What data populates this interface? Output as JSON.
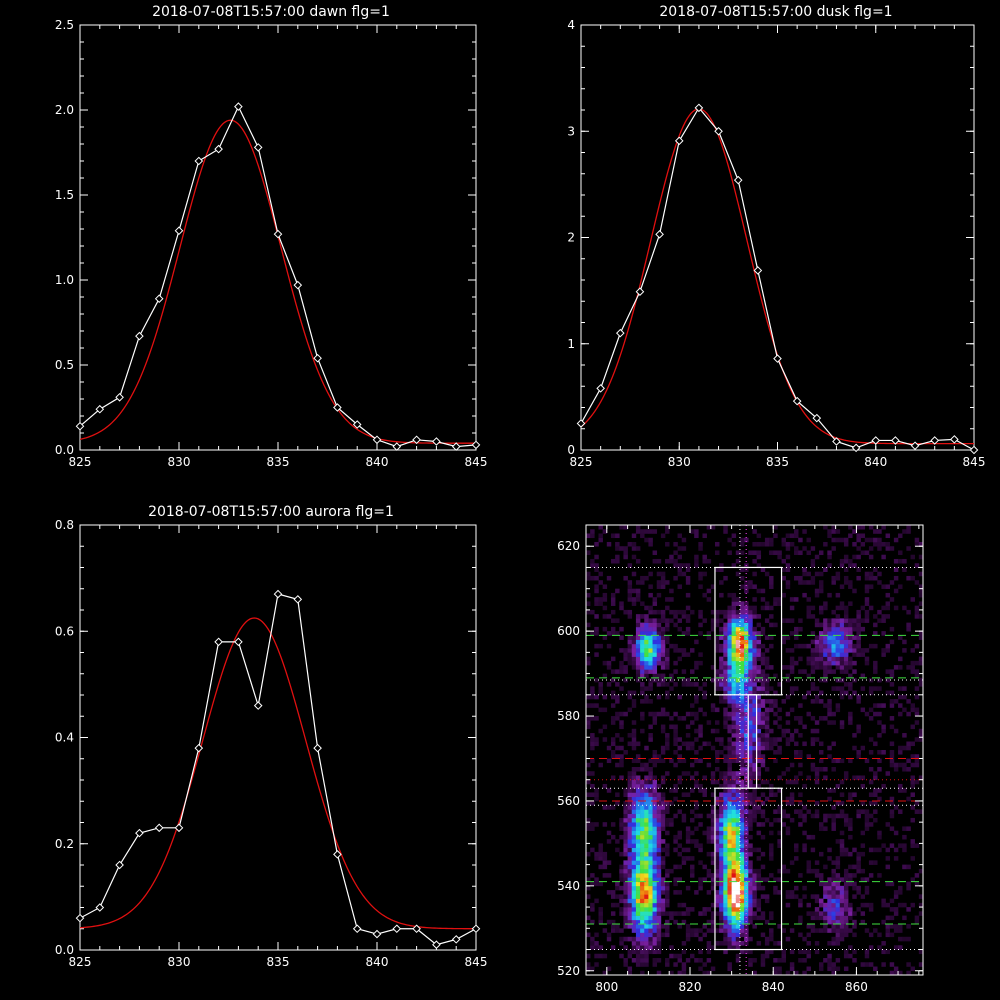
{
  "chart_data": [
    {
      "type": "line",
      "title": "2018-07-08T15:57:00 dawn flg=1",
      "xlim": [
        825,
        845
      ],
      "ylim": [
        0,
        2.5
      ],
      "xticks": [
        "825",
        "830",
        "835",
        "840",
        "845"
      ],
      "yticks": [
        "0.0",
        "0.5",
        "1.0",
        "1.5",
        "2.0",
        "2.5"
      ],
      "series": [
        {
          "role": "data",
          "color": "#ffffff",
          "marker": "diamond",
          "x": [
            825,
            826,
            827,
            828,
            829,
            830,
            831,
            832,
            833,
            834,
            835,
            836,
            837,
            838,
            839,
            840,
            841,
            842,
            843,
            844,
            845
          ],
          "y": [
            0.14,
            0.24,
            0.31,
            0.67,
            0.89,
            1.29,
            1.7,
            1.77,
            2.02,
            1.78,
            1.27,
            0.97,
            0.54,
            0.25,
            0.15,
            0.06,
            0.02,
            0.06,
            0.05,
            0.02,
            0.03
          ]
        },
        {
          "role": "fit",
          "color": "#e01010",
          "kind": "gaussian",
          "amplitude": 1.9,
          "center": 832.6,
          "sigma": 2.55,
          "baseline": 0.04
        }
      ]
    },
    {
      "type": "line",
      "title": "2018-07-08T15:57:00 dusk flg=1",
      "xlim": [
        825,
        845
      ],
      "ylim": [
        0,
        4
      ],
      "xticks": [
        "825",
        "830",
        "835",
        "840",
        "845"
      ],
      "yticks": [
        "0",
        "1",
        "2",
        "3",
        "4"
      ],
      "series": [
        {
          "role": "data",
          "color": "#ffffff",
          "marker": "diamond",
          "x": [
            825,
            826,
            827,
            828,
            829,
            830,
            831,
            832,
            833,
            834,
            835,
            836,
            837,
            838,
            839,
            840,
            841,
            842,
            843,
            844,
            845
          ],
          "y": [
            0.25,
            0.58,
            1.1,
            1.49,
            2.03,
            2.91,
            3.22,
            3.0,
            2.54,
            1.69,
            0.86,
            0.46,
            0.3,
            0.08,
            0.02,
            0.09,
            0.09,
            0.04,
            0.09,
            0.1,
            0.0
          ]
        },
        {
          "role": "fit",
          "color": "#e01010",
          "kind": "gaussian",
          "amplitude": 3.15,
          "center": 831.0,
          "sigma": 2.45,
          "baseline": 0.06
        }
      ]
    },
    {
      "type": "line",
      "title": "2018-07-08T15:57:00 aurora flg=1",
      "xlim": [
        825,
        845
      ],
      "ylim": [
        0,
        0.8
      ],
      "xticks": [
        "825",
        "830",
        "835",
        "840",
        "845"
      ],
      "yticks": [
        "0.0",
        "0.2",
        "0.4",
        "0.6",
        "0.8"
      ],
      "series": [
        {
          "role": "data",
          "color": "#ffffff",
          "marker": "diamond",
          "x": [
            825,
            826,
            827,
            828,
            829,
            830,
            831,
            832,
            833,
            834,
            835,
            836,
            837,
            838,
            839,
            840,
            841,
            842,
            843,
            844,
            845
          ],
          "y": [
            0.06,
            0.08,
            0.16,
            0.22,
            0.23,
            0.23,
            0.38,
            0.58,
            0.58,
            0.46,
            0.67,
            0.66,
            0.38,
            0.18,
            0.04,
            0.03,
            0.04,
            0.04,
            0.01,
            0.02,
            0.04
          ]
        },
        {
          "role": "fit",
          "color": "#e01010",
          "kind": "gaussian",
          "amplitude": 0.585,
          "center": 833.8,
          "sigma": 2.6,
          "baseline": 0.04
        }
      ]
    },
    {
      "type": "heatmap",
      "xlim": [
        795,
        876
      ],
      "ylim": [
        519,
        625
      ],
      "xticks": [
        800,
        820,
        840,
        860
      ],
      "yticks": [
        520,
        540,
        560,
        580,
        600,
        620
      ],
      "colormap": [
        "#000000",
        "#3a0a4a",
        "#7a1fa0",
        "#3030e0",
        "#20a0f0",
        "#20e0e0",
        "#40e040",
        "#f0e020",
        "#f08010",
        "#e01010",
        "#ffffff"
      ],
      "blobs": [
        {
          "x": 809,
          "y": 538,
          "sx": 2.2,
          "sy": 6,
          "amp": 0.75
        },
        {
          "x": 809,
          "y": 554,
          "sx": 2.2,
          "sy": 6,
          "amp": 0.55
        },
        {
          "x": 810,
          "y": 596,
          "sx": 2.0,
          "sy": 3.5,
          "amp": 0.55
        },
        {
          "x": 831,
          "y": 538,
          "sx": 2.0,
          "sy": 5,
          "amp": 1.0
        },
        {
          "x": 830,
          "y": 552,
          "sx": 2.0,
          "sy": 6,
          "amp": 0.65
        },
        {
          "x": 832,
          "y": 597,
          "sx": 2.0,
          "sy": 4,
          "amp": 0.85
        },
        {
          "x": 831,
          "y": 588,
          "sx": 2.0,
          "sy": 3,
          "amp": 0.35
        },
        {
          "x": 834,
          "y": 578,
          "sx": 2.5,
          "sy": 8,
          "amp": 0.25
        },
        {
          "x": 855,
          "y": 597,
          "sx": 2.5,
          "sy": 3,
          "amp": 0.35
        },
        {
          "x": 855,
          "y": 535,
          "sx": 2.5,
          "sy": 4,
          "amp": 0.2
        }
      ],
      "noise": 0.12,
      "background_level": 0.08,
      "boxes": [
        {
          "x0": 826,
          "x1": 842,
          "y0": 585,
          "y1": 615
        },
        {
          "x0": 826,
          "x1": 842,
          "y0": 525,
          "y1": 563
        },
        {
          "x0": 834,
          "x1": 836,
          "y0": 563,
          "y1": 585
        }
      ],
      "hlines": [
        {
          "y": 615,
          "color": "#ffffff",
          "style": "dotted"
        },
        {
          "y": 599,
          "color": "#40e040",
          "style": "dashed"
        },
        {
          "y": 589,
          "color": "#40e040",
          "style": "dashed"
        },
        {
          "y": 588.5,
          "color": "#ffffff",
          "style": "dotted"
        },
        {
          "y": 585,
          "color": "#ffffff",
          "style": "dotted"
        },
        {
          "y": 570,
          "color": "#e01010",
          "style": "dashed"
        },
        {
          "y": 565,
          "color": "#e01010",
          "style": "dotted"
        },
        {
          "y": 563,
          "color": "#ffffff",
          "style": "dotted"
        },
        {
          "y": 560,
          "color": "#e01010",
          "style": "dashed"
        },
        {
          "y": 559,
          "color": "#ffffff",
          "style": "dotted"
        },
        {
          "y": 541,
          "color": "#40e040",
          "style": "dashed"
        },
        {
          "y": 531,
          "color": "#40e040",
          "style": "dashed"
        },
        {
          "y": 525,
          "color": "#ffffff",
          "style": "dotted"
        }
      ],
      "vlines": [
        {
          "x": 832,
          "color": "#ffffff",
          "style": "dotted"
        },
        {
          "x": 833.5,
          "color": "#ff40ff",
          "style": "dotted"
        }
      ]
    }
  ]
}
